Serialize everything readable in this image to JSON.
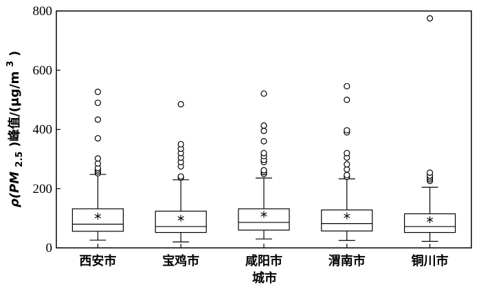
{
  "chart_data": {
    "type": "box",
    "xlabel": "城市",
    "ylabel": {
      "prefix": "ρ(PM",
      "sub": "2.5",
      "mid": ")峰值/(μg/m",
      "sup": "3",
      "suffix": ")"
    },
    "ylim": [
      0,
      800
    ],
    "yticks": [
      0,
      200,
      400,
      600,
      800
    ],
    "grid": false,
    "mean_marker": "asterisk",
    "categories": [
      "西安市",
      "宝鸡市",
      "咸阳市",
      "渭南市",
      "铜川市"
    ],
    "boxes": [
      {
        "name": "西安市",
        "whisker_low": 26,
        "q1": 56,
        "median": 80,
        "q3": 132,
        "whisker_high": 248,
        "mean": 107,
        "outliers": [
          252,
          258,
          264,
          270,
          285,
          302,
          370,
          433,
          490,
          527
        ]
      },
      {
        "name": "宝鸡市",
        "whisker_low": 20,
        "q1": 52,
        "median": 72,
        "q3": 124,
        "whisker_high": 230,
        "mean": 100,
        "outliers": [
          237,
          241,
          275,
          290,
          305,
          320,
          335,
          350,
          485
        ]
      },
      {
        "name": "咸阳市",
        "whisker_low": 30,
        "q1": 60,
        "median": 86,
        "q3": 132,
        "whisker_high": 236,
        "mean": 113,
        "outliers": [
          250,
          256,
          262,
          290,
          297,
          310,
          320,
          360,
          395,
          413,
          521
        ]
      },
      {
        "name": "渭南市",
        "whisker_low": 25,
        "q1": 57,
        "median": 82,
        "q3": 128,
        "whisker_high": 233,
        "mean": 108,
        "outliers": [
          240,
          246,
          265,
          282,
          305,
          320,
          390,
          397,
          500,
          546
        ]
      },
      {
        "name": "铜川市",
        "whisker_low": 22,
        "q1": 52,
        "median": 72,
        "q3": 115,
        "whisker_high": 205,
        "mean": 95,
        "outliers": [
          226,
          232,
          238,
          244,
          254,
          775
        ]
      }
    ]
  }
}
